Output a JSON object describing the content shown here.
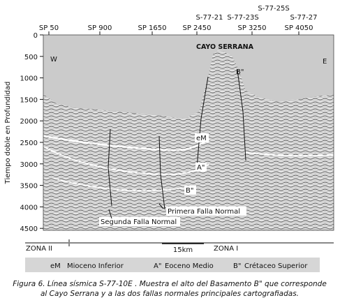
{
  "figure": {
    "axis_label": "Tiempo doble en Profundidad",
    "yticks": [
      0,
      500,
      1000,
      1500,
      2000,
      2500,
      3000,
      3500,
      4000,
      4500
    ],
    "shot_points": [
      "SP 50",
      "SP 900",
      "SP 1650",
      "SP 2450",
      "SP 3250",
      "SP 4050"
    ],
    "lines": [
      "S-77-21",
      "S-77-23S",
      "S-77-25S",
      "S-77-27"
    ],
    "annotations": {
      "title": "CAYO SERRANA",
      "west": "W",
      "east": "E",
      "basement_top": "B\"",
      "em": "eM",
      "a": "A\"",
      "b": "B\"",
      "fault_1": "Primera Falla Normal",
      "fault_2": "Segunda Falla Normal"
    },
    "zones": [
      "ZONA II",
      "ZONA I"
    ],
    "scale": "15km",
    "legend": [
      {
        "code": "eM",
        "label": "Mioceno Inferior"
      },
      {
        "code": "A\"",
        "label": "Eoceno Medio"
      },
      {
        "code": "B\"",
        "label": "Crétaceo Superior"
      }
    ],
    "caption": [
      "Figura 6. Línea sísmica S-77-10E . Muestra el alto del Basamento B\" que corresponde",
      "al Cayo Serrana y a las dos fallas normales principales cartografiadas."
    ]
  }
}
